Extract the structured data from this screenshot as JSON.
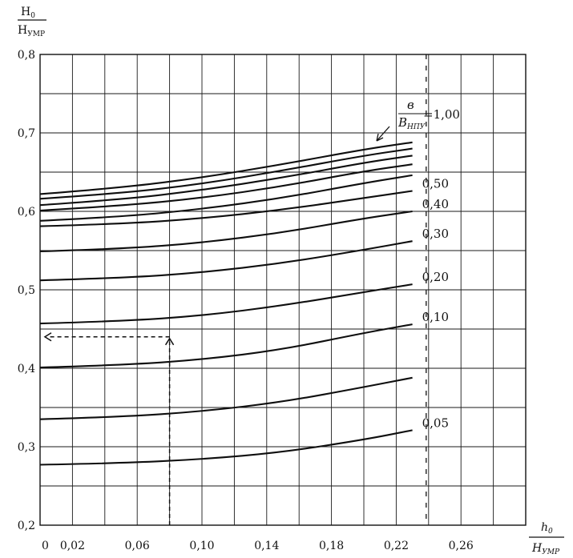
{
  "chart_data": {
    "type": "line",
    "ylabel_num": "H",
    "ylabel_num_sub": "0",
    "ylabel_den": "H",
    "ylabel_den_sub": "УМР",
    "xlabel_num": "h",
    "xlabel_num_sub": "0",
    "xlabel_den": "H",
    "xlabel_den_sub": "УМР",
    "xlim": [
      0,
      0.3
    ],
    "ylim": [
      0.2,
      0.8
    ],
    "x_ticks": [
      {
        "value": 0,
        "label": "0"
      },
      {
        "value": 0.02,
        "label": "0,02"
      },
      {
        "value": 0.06,
        "label": "0,06"
      },
      {
        "value": 0.1,
        "label": "0,10"
      },
      {
        "value": 0.14,
        "label": "0,14"
      },
      {
        "value": 0.18,
        "label": "0,18"
      },
      {
        "value": 0.22,
        "label": "0,22"
      },
      {
        "value": 0.26,
        "label": "0,26"
      }
    ],
    "y_ticks": [
      {
        "value": 0.2,
        "label": "0,2"
      },
      {
        "value": 0.3,
        "label": "0,3"
      },
      {
        "value": 0.4,
        "label": "0,4"
      },
      {
        "value": 0.5,
        "label": "0,5"
      },
      {
        "value": 0.6,
        "label": "0,6"
      },
      {
        "value": 0.7,
        "label": "0,7"
      },
      {
        "value": 0.8,
        "label": "0,8"
      }
    ],
    "grid": true,
    "grid_x_step": 0.02,
    "grid_y_step": 0.05,
    "reference_x": 0.24,
    "param_label": {
      "num": "в",
      "den": "B",
      "den_sub": "НПУ",
      "eq": "=1,00"
    },
    "series": [
      {
        "label": "",
        "x": [
          0,
          0.05,
          0.1,
          0.15,
          0.2,
          0.23
        ],
        "y": [
          0.622,
          0.63,
          0.643,
          0.66,
          0.679,
          0.688
        ]
      },
      {
        "label": "",
        "x": [
          0,
          0.05,
          0.1,
          0.15,
          0.2,
          0.23
        ],
        "y": [
          0.616,
          0.623,
          0.635,
          0.652,
          0.671,
          0.68
        ]
      },
      {
        "label": "",
        "x": [
          0,
          0.05,
          0.1,
          0.15,
          0.2,
          0.23
        ],
        "y": [
          0.608,
          0.615,
          0.627,
          0.643,
          0.662,
          0.671
        ]
      },
      {
        "label": "",
        "x": [
          0,
          0.05,
          0.1,
          0.15,
          0.2,
          0.23
        ],
        "y": [
          0.601,
          0.607,
          0.617,
          0.632,
          0.651,
          0.66
        ]
      },
      {
        "label": "",
        "x": [
          0,
          0.05,
          0.1,
          0.15,
          0.2,
          0.23
        ],
        "y": [
          0.588,
          0.593,
          0.603,
          0.617,
          0.636,
          0.646
        ]
      },
      {
        "label": "0,50",
        "x": [
          0,
          0.05,
          0.1,
          0.15,
          0.2,
          0.23
        ],
        "y": [
          0.581,
          0.584,
          0.591,
          0.602,
          0.617,
          0.626
        ]
      },
      {
        "label": "0,40",
        "x": [
          0,
          0.05,
          0.1,
          0.15,
          0.2,
          0.23
        ],
        "y": [
          0.549,
          0.552,
          0.56,
          0.573,
          0.591,
          0.6
        ]
      },
      {
        "label": "0,30",
        "x": [
          0,
          0.05,
          0.1,
          0.15,
          0.2,
          0.23
        ],
        "y": [
          0.512,
          0.515,
          0.522,
          0.534,
          0.551,
          0.562
        ]
      },
      {
        "label": "0,20",
        "x": [
          0,
          0.05,
          0.1,
          0.15,
          0.2,
          0.23
        ],
        "y": [
          0.457,
          0.46,
          0.467,
          0.48,
          0.497,
          0.507
        ]
      },
      {
        "label": "0,10",
        "x": [
          0,
          0.05,
          0.1,
          0.15,
          0.2,
          0.23
        ],
        "y": [
          0.401,
          0.404,
          0.411,
          0.424,
          0.445,
          0.456
        ]
      },
      {
        "label": "",
        "x": [
          0,
          0.05,
          0.1,
          0.15,
          0.2,
          0.23
        ],
        "y": [
          0.335,
          0.338,
          0.345,
          0.357,
          0.376,
          0.388
        ]
      },
      {
        "label": "0,05",
        "x": [
          0,
          0.05,
          0.1,
          0.15,
          0.2,
          0.23
        ],
        "y": [
          0.277,
          0.279,
          0.284,
          0.293,
          0.309,
          0.321
        ]
      }
    ],
    "example": {
      "x_start": 0.08,
      "y_start": 0.2,
      "y_read": 0.44,
      "x_read": 0
    }
  }
}
